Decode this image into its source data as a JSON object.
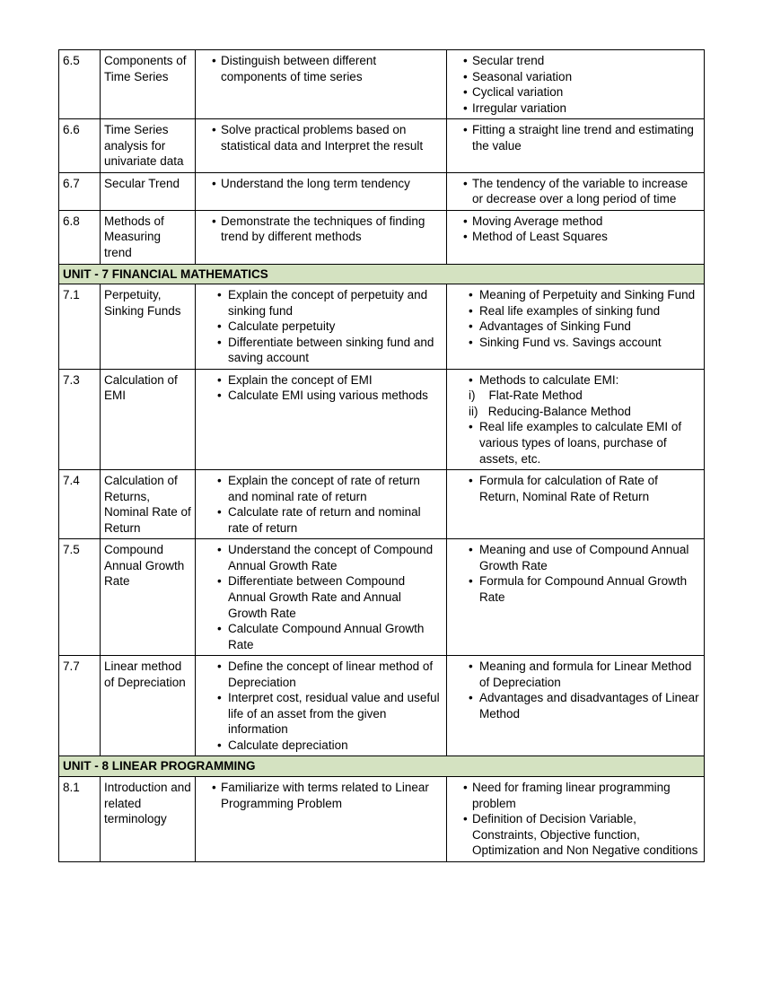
{
  "colors": {
    "unit_header_bg": "#d4e2c1",
    "border": "#000000",
    "text": "#000000",
    "background": "#ffffff"
  },
  "rows": [
    {
      "num": "6.5",
      "topic": "Components of Time Series",
      "obj": [
        "Distinguish between different components of time series"
      ],
      "content": [
        "Secular trend",
        "Seasonal variation",
        "Cyclical variation",
        "Irregular variation"
      ]
    },
    {
      "num": "6.6",
      "topic": "Time Series analysis for univariate data",
      "obj": [
        "Solve practical problems based on statistical data and Interpret the result"
      ],
      "content": [
        "Fitting a straight line trend and estimating the value"
      ]
    },
    {
      "num": "6.7",
      "topic": "Secular Trend",
      "obj": [
        "Understand the long term tendency"
      ],
      "content": [
        "The tendency of the variable to increase or decrease over a long period of time"
      ]
    },
    {
      "num": "6.8",
      "topic": "Methods of Measuring trend",
      "obj": [
        "Demonstrate the techniques of finding trend by different methods"
      ],
      "content": [
        "Moving Average method",
        "Method of Least Squares"
      ]
    },
    {
      "unit": "UNIT - 7   FINANCIAL MATHEMATICS"
    },
    {
      "num": "7.1",
      "topic": "Perpetuity, Sinking Funds",
      "obj": [
        "Explain the concept of perpetuity and sinking fund",
        "Calculate perpetuity",
        " Differentiate between sinking fund and saving account"
      ],
      "content": [
        "Meaning of Perpetuity and Sinking Fund",
        "Real life examples of sinking fund",
        "Advantages of Sinking Fund",
        "Sinking Fund vs. Savings account"
      ],
      "pad": true
    },
    {
      "num": "7.3",
      "topic": "Calculation of EMI",
      "obj": [
        "Explain the concept of EMI",
        "Calculate EMI using various methods"
      ],
      "content_raw": "<ul class='bul'><li>Methods to calculate EMI:</li></ul><ul class='sub'><li>i)&nbsp;&nbsp;&nbsp;&nbsp;Flat-Rate Method</li><li>ii)&nbsp;&nbsp;&nbsp;Reducing-Balance Method</li></ul><ul class='bul'><li>Real life examples to calculate EMI of various types of loans, purchase of assets, etc.</li></ul>",
      "pad": true
    },
    {
      "num": "7.4",
      "topic": "Calculation of Returns, Nominal Rate of Return",
      "obj": [
        " Explain the concept of rate of return and nominal rate of return",
        " Calculate rate of return and nominal rate of return"
      ],
      "content": [
        "Formula for calculation of Rate of Return, Nominal Rate of Return"
      ],
      "pad": true
    },
    {
      "num": "7.5",
      "topic": "Compound Annual Growth Rate",
      "obj": [
        "Understand the concept of Compound Annual Growth Rate",
        "Differentiate between Compound Annual Growth Rate and Annual Growth Rate",
        "Calculate Compound Annual Growth Rate"
      ],
      "content": [
        "Meaning and use of Compound Annual Growth Rate",
        "Formula for Compound Annual Growth Rate"
      ],
      "pad": true
    },
    {
      "num": "7.7",
      "topic": "Linear method of Depreciation",
      "obj": [
        "Define the concept of linear method of Depreciation",
        "Interpret cost, residual value and useful life of an asset from the given information",
        "Calculate depreciation"
      ],
      "content": [
        "Meaning and formula for Linear Method of Depreciation",
        "Advantages and disadvantages of Linear Method"
      ],
      "pad": true
    },
    {
      "unit": "  UNIT - 8   LINEAR PROGRAMMING"
    },
    {
      "num": "8.1",
      "topic": "Introduction and related terminology",
      "obj": [
        "Familiarize with terms related to Linear Programming Problem"
      ],
      "content": [
        "Need for framing linear programming problem",
        "Definition of Decision Variable, Constraints, Objective function, Optimization and Non Negative conditions"
      ]
    }
  ]
}
